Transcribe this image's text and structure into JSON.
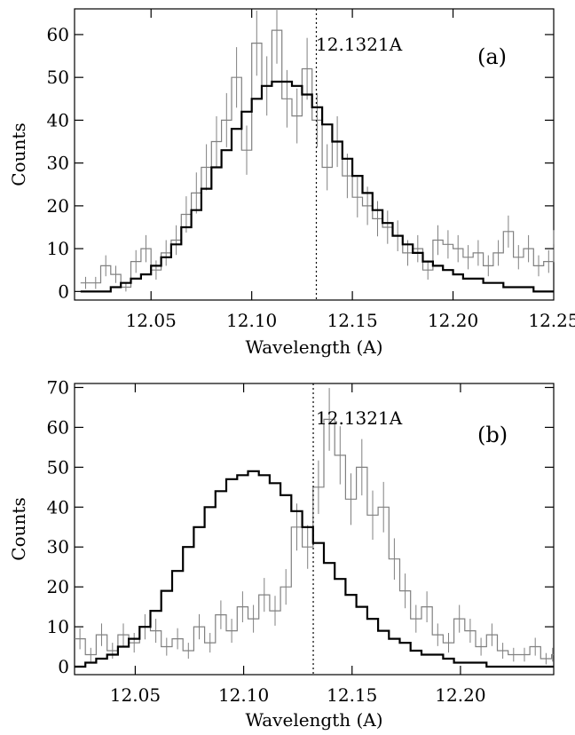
{
  "chart_data": [
    {
      "type": "line",
      "panel_label": "(a)",
      "xlabel": "Wavelength (A)",
      "ylabel": "Counts",
      "xlim": [
        12.012,
        12.25
      ],
      "ylim": [
        -2,
        66
      ],
      "xticks": [
        12.05,
        12.1,
        12.15,
        12.2,
        12.25
      ],
      "xtick_labels": [
        "12.05",
        "12.10",
        "12.15",
        "12.20",
        "12.25"
      ],
      "yticks": [
        0,
        10,
        20,
        30,
        40,
        50,
        60
      ],
      "ytick_labels": [
        "0",
        "10",
        "20",
        "30",
        "40",
        "50",
        "60"
      ],
      "reference_line": {
        "x": 12.1321,
        "label": "12.1321A",
        "style": "dotted"
      },
      "grid": false,
      "bin_width": 0.005,
      "x_start": 12.015,
      "series": [
        {
          "style": "model-histogram",
          "color": "#000000",
          "values": [
            0,
            0,
            0,
            1,
            2,
            3,
            4,
            6,
            8,
            11,
            15,
            19,
            24,
            29,
            33,
            38,
            42,
            45,
            48,
            49,
            49,
            48,
            46,
            43,
            39,
            35,
            31,
            27,
            23,
            19,
            16,
            13,
            11,
            9,
            7,
            6,
            5,
            4,
            3,
            3,
            2,
            2,
            1,
            1,
            1,
            0,
            0,
            0
          ]
        },
        {
          "style": "data-histogram",
          "color": "#808080",
          "values": [
            2,
            2,
            6,
            4,
            1,
            7,
            10,
            5,
            9,
            12,
            18,
            23,
            29,
            35,
            40,
            50,
            33,
            58,
            48,
            61,
            45,
            41,
            52,
            40,
            29,
            35,
            27,
            22,
            20,
            17,
            15,
            13,
            9,
            10,
            5,
            12,
            11,
            10,
            8,
            9,
            6,
            9,
            14,
            8,
            10,
            6,
            7,
            11
          ]
        }
      ]
    },
    {
      "type": "line",
      "panel_label": "(b)",
      "xlabel": "Wavelength (A)",
      "ylabel": "Counts",
      "xlim": [
        12.022,
        12.243
      ],
      "ylim": [
        -2,
        71
      ],
      "xticks": [
        12.05,
        12.1,
        12.15,
        12.2
      ],
      "xtick_labels": [
        "12.05",
        "12.10",
        "12.15",
        "12.20"
      ],
      "yticks": [
        0,
        10,
        20,
        30,
        40,
        50,
        60,
        70
      ],
      "ytick_labels": [
        "0",
        "10",
        "20",
        "30",
        "40",
        "50",
        "60",
        "70"
      ],
      "reference_line": {
        "x": 12.1321,
        "label": "12.1321A",
        "style": "dotted"
      },
      "grid": false,
      "bin_width": 0.005,
      "x_start": 12.022,
      "series": [
        {
          "style": "model-histogram",
          "color": "#000000",
          "values": [
            0,
            1,
            2,
            3,
            5,
            7,
            10,
            14,
            19,
            24,
            30,
            35,
            40,
            44,
            47,
            48,
            49,
            48,
            46,
            43,
            39,
            35,
            31,
            26,
            22,
            18,
            15,
            12,
            9,
            7,
            6,
            4,
            3,
            3,
            2,
            1,
            1,
            1,
            0,
            0,
            0,
            0,
            0,
            0,
            0
          ]
        },
        {
          "style": "data-histogram",
          "color": "#808080",
          "values": [
            7,
            3,
            8,
            4,
            8,
            6,
            10,
            9,
            5,
            7,
            4,
            10,
            6,
            13,
            9,
            15,
            12,
            18,
            14,
            20,
            35,
            30,
            45,
            62,
            53,
            42,
            50,
            38,
            40,
            27,
            19,
            12,
            15,
            8,
            6,
            12,
            9,
            5,
            8,
            4,
            3,
            3,
            5,
            2,
            3
          ]
        }
      ]
    }
  ]
}
